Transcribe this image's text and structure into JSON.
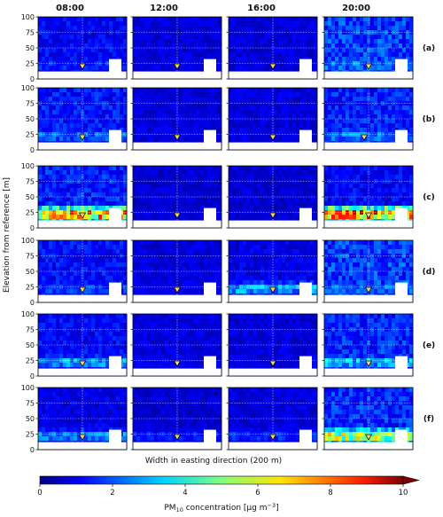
{
  "chart_data": {
    "type": "heatmap",
    "columns": [
      "08:00",
      "12:00",
      "16:00",
      "20:00"
    ],
    "rows": [
      {
        "label": "(a)",
        "background_level": [
          1.2,
          0.9,
          0.9,
          1.8
        ],
        "plume_level": [
          2.2,
          1.0,
          0.9,
          3.2
        ]
      },
      {
        "label": "(b)",
        "background_level": [
          1.4,
          0.9,
          0.9,
          1.5
        ],
        "plume_level": [
          3.0,
          1.1,
          1.0,
          3.4
        ]
      },
      {
        "label": "(c)",
        "background_level": [
          1.5,
          0.8,
          0.8,
          1.2
        ],
        "plume_level": [
          9.5,
          1.2,
          1.0,
          9.8
        ]
      },
      {
        "label": "(d)",
        "background_level": [
          1.3,
          0.9,
          1.0,
          1.8
        ],
        "plume_level": [
          2.5,
          1.2,
          3.8,
          3.0
        ]
      },
      {
        "label": "(e)",
        "background_level": [
          1.2,
          0.9,
          0.9,
          1.6
        ],
        "plume_level": [
          3.6,
          1.4,
          1.4,
          4.0
        ]
      },
      {
        "label": "(f)",
        "background_level": [
          1.0,
          0.8,
          0.9,
          1.6
        ],
        "plume_level": [
          3.4,
          2.0,
          2.2,
          7.5
        ]
      }
    ],
    "ylabel": "Elevation from reference [m]",
    "xlabel": "Width in easting direction (200 m)",
    "yticks": [
      0,
      25,
      50,
      75,
      100
    ],
    "ylim": [
      0,
      100
    ],
    "grid": true,
    "colorbar": {
      "label_prefix": "PM",
      "label_sub": "10",
      "label_suffix": " concentration [μg m",
      "label_sup": "−3",
      "label_end": "]",
      "ticks": [
        0,
        2,
        4,
        6,
        8,
        10
      ],
      "range": [
        0,
        10
      ],
      "extend": "max",
      "colormap": "jet"
    },
    "marker": "triangle-down",
    "marker_colors": [
      "#f2d46a",
      "#7ec6e8"
    ]
  }
}
